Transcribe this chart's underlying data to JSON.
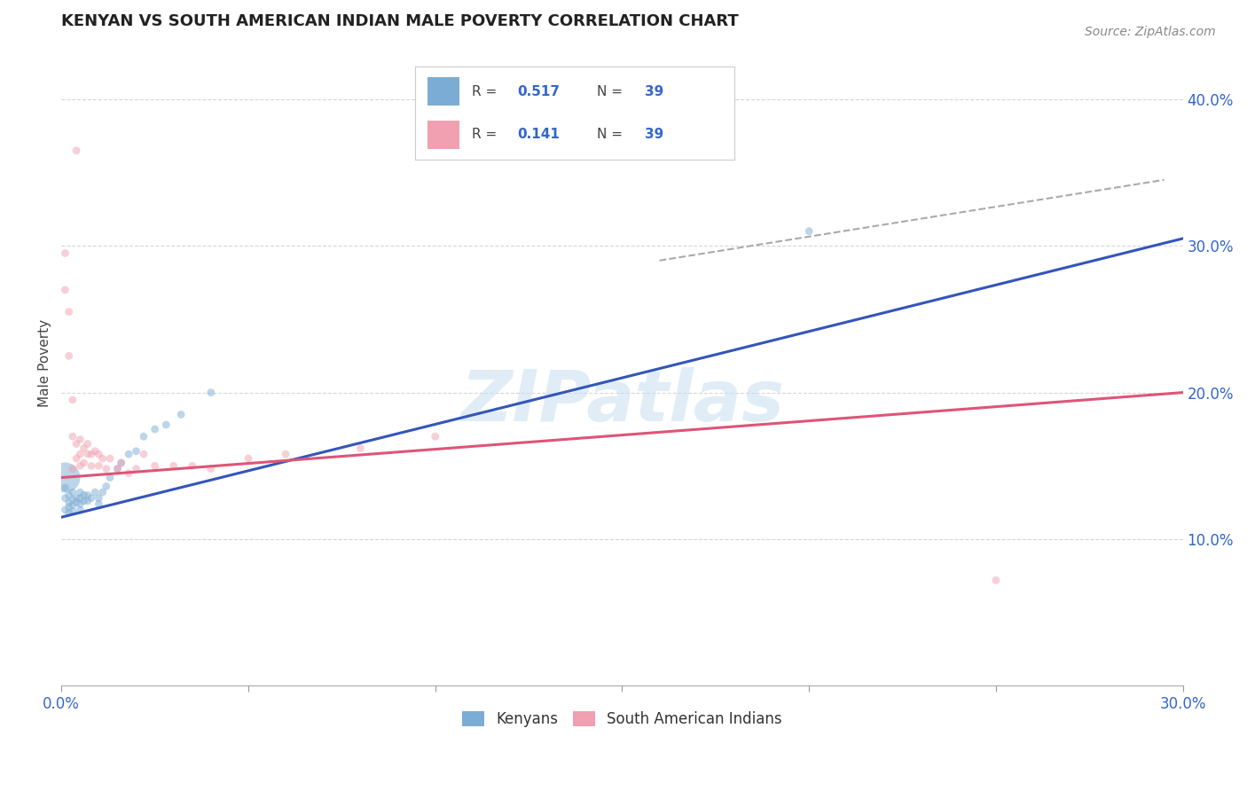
{
  "title": "KENYAN VS SOUTH AMERICAN INDIAN MALE POVERTY CORRELATION CHART",
  "source": "Source: ZipAtlas.com",
  "ylabel": "Male Poverty",
  "xlim": [
    0.0,
    0.3
  ],
  "ylim": [
    0.0,
    0.44
  ],
  "xtick_positions": [
    0.0,
    0.05,
    0.1,
    0.15,
    0.2,
    0.25,
    0.3
  ],
  "xtick_labels_show": [
    "0.0%",
    "",
    "",
    "",
    "",
    "",
    "30.0%"
  ],
  "yticks": [
    0.1,
    0.2,
    0.3,
    0.4
  ],
  "yticklabels": [
    "10.0%",
    "20.0%",
    "30.0%",
    "40.0%"
  ],
  "background_color": "#ffffff",
  "grid_color": "#cccccc",
  "watermark": "ZIPatlas",
  "legend_R_blue": "0.517",
  "legend_R_pink": "0.141",
  "legend_N": "39",
  "blue_color": "#7badd4",
  "pink_color": "#f0a0b0",
  "line_blue_color": "#3355bb",
  "line_pink_color": "#dd5577",
  "blue_line_x": [
    0.0,
    0.3
  ],
  "blue_line_y": [
    0.115,
    0.305
  ],
  "pink_line_x": [
    0.0,
    0.3
  ],
  "pink_line_y": [
    0.142,
    0.2
  ],
  "dashed_line_x": [
    0.16,
    0.295
  ],
  "dashed_line_y": [
    0.29,
    0.345
  ],
  "kenyan_x": [
    0.001,
    0.001,
    0.001,
    0.002,
    0.002,
    0.002,
    0.002,
    0.003,
    0.003,
    0.003,
    0.003,
    0.004,
    0.004,
    0.005,
    0.005,
    0.005,
    0.005,
    0.006,
    0.006,
    0.007,
    0.007,
    0.008,
    0.009,
    0.01,
    0.01,
    0.011,
    0.012,
    0.013,
    0.015,
    0.016,
    0.018,
    0.02,
    0.022,
    0.025,
    0.028,
    0.032,
    0.04,
    0.2,
    0.001
  ],
  "kenyan_y": [
    0.135,
    0.128,
    0.12,
    0.13,
    0.125,
    0.122,
    0.118,
    0.132,
    0.127,
    0.123,
    0.119,
    0.128,
    0.125,
    0.132,
    0.128,
    0.124,
    0.12,
    0.13,
    0.126,
    0.13,
    0.126,
    0.128,
    0.132,
    0.128,
    0.124,
    0.132,
    0.136,
    0.142,
    0.148,
    0.152,
    0.158,
    0.16,
    0.17,
    0.175,
    0.178,
    0.185,
    0.2,
    0.31,
    0.142
  ],
  "kenyan_size": [
    40,
    40,
    40,
    40,
    40,
    40,
    40,
    40,
    40,
    40,
    40,
    40,
    40,
    40,
    40,
    40,
    40,
    40,
    40,
    40,
    40,
    40,
    40,
    40,
    40,
    40,
    40,
    40,
    40,
    40,
    40,
    40,
    40,
    40,
    40,
    40,
    40,
    40,
    600
  ],
  "sai_x": [
    0.001,
    0.001,
    0.002,
    0.002,
    0.003,
    0.003,
    0.003,
    0.004,
    0.004,
    0.005,
    0.005,
    0.005,
    0.006,
    0.006,
    0.007,
    0.007,
    0.008,
    0.008,
    0.009,
    0.01,
    0.01,
    0.011,
    0.012,
    0.013,
    0.015,
    0.016,
    0.018,
    0.02,
    0.022,
    0.025,
    0.03,
    0.035,
    0.04,
    0.05,
    0.06,
    0.08,
    0.1,
    0.004,
    0.25
  ],
  "sai_y": [
    0.27,
    0.295,
    0.255,
    0.225,
    0.195,
    0.17,
    0.148,
    0.165,
    0.155,
    0.168,
    0.158,
    0.15,
    0.162,
    0.152,
    0.165,
    0.158,
    0.158,
    0.15,
    0.16,
    0.158,
    0.15,
    0.155,
    0.148,
    0.155,
    0.148,
    0.152,
    0.145,
    0.148,
    0.158,
    0.15,
    0.15,
    0.15,
    0.148,
    0.155,
    0.158,
    0.162,
    0.17,
    0.365,
    0.072
  ],
  "sai_size": [
    40,
    40,
    40,
    40,
    40,
    40,
    40,
    40,
    40,
    40,
    40,
    40,
    40,
    40,
    40,
    40,
    40,
    40,
    40,
    40,
    40,
    40,
    40,
    40,
    40,
    40,
    40,
    40,
    40,
    40,
    40,
    40,
    40,
    40,
    40,
    40,
    40,
    40,
    40
  ]
}
